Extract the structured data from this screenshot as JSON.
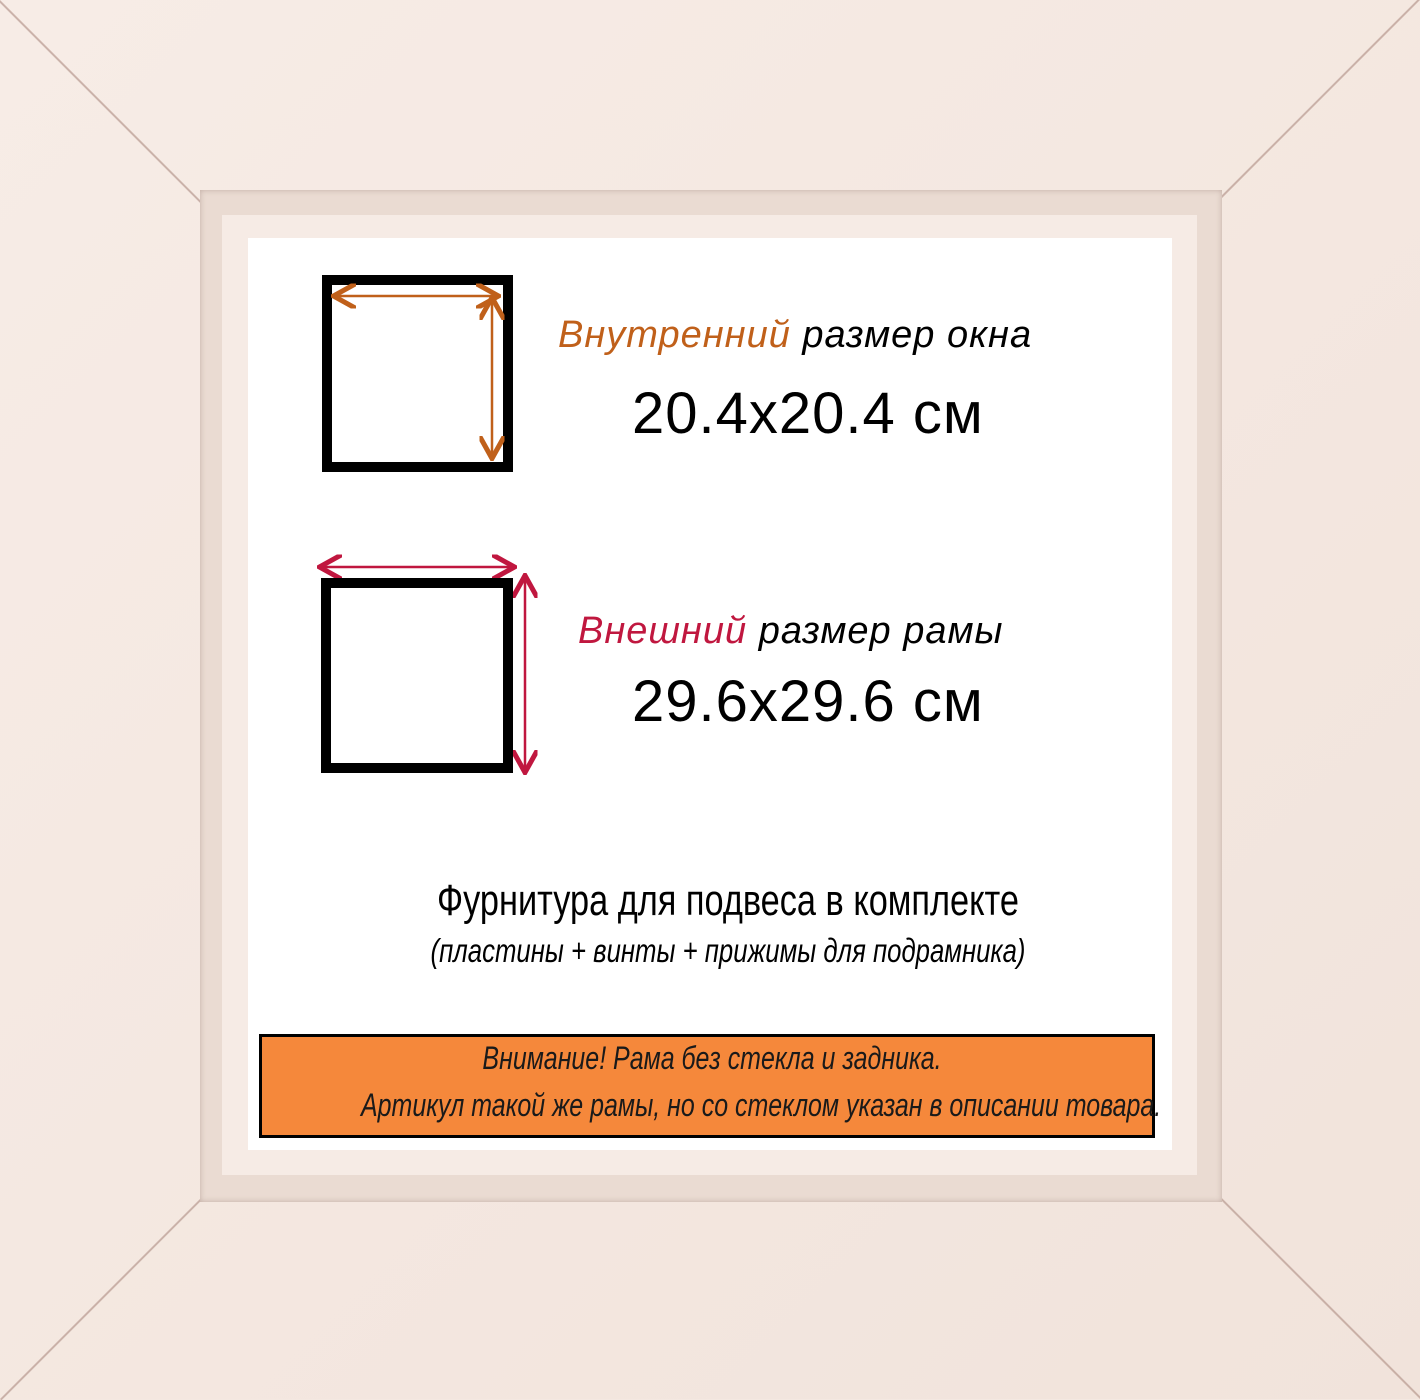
{
  "inner": {
    "accent": "Внутренний",
    "rest": "размер окна",
    "size": "20.4x20.4 см",
    "color": "#c0601a"
  },
  "outer": {
    "accent": "Внешний",
    "rest": "размер рамы",
    "size": "29.6x29.6 см",
    "color": "#c0173f"
  },
  "hardware": {
    "title": "Фурнитура для подвеса в комплекте",
    "subtitle": "(пластины + винты + прижимы для подрамника)"
  },
  "notice": {
    "line1": "Внимание! Рама без стекла и задника.",
    "line2": "Артикул такой же рамы, но со стеклом указан в описании товара.",
    "bg": "#f5883b"
  },
  "frame_color": "#f4e8e1"
}
